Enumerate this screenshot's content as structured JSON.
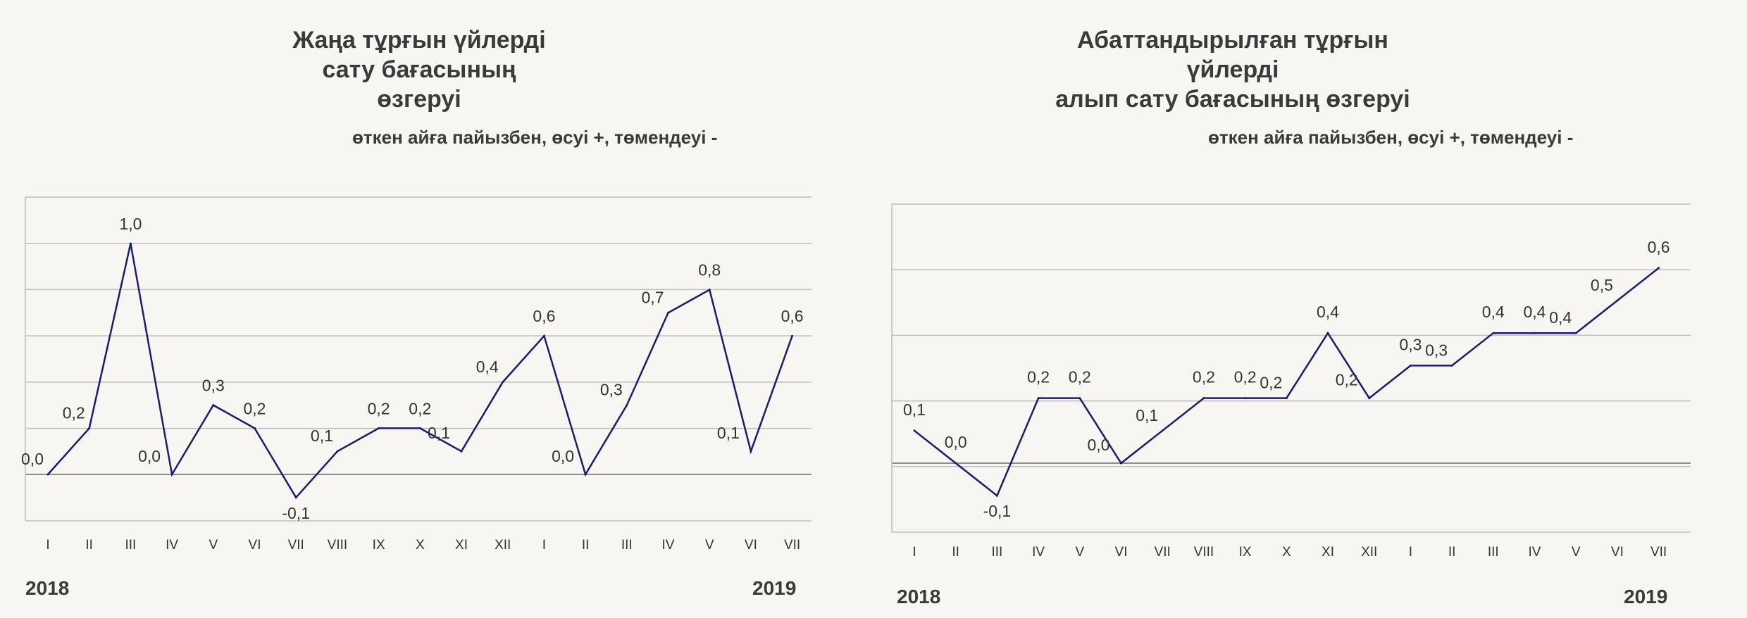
{
  "chart_data": [
    {
      "type": "line",
      "title": "Жаңа тұрғын үйлерді\nсату бағасының өзгеруі",
      "subtitle": "өткен айға пайызбен, өсуі +, төмендеуі -",
      "categories": [
        "I",
        "II",
        "III",
        "IV",
        "V",
        "VI",
        "VII",
        "VIII",
        "IX",
        "X",
        "XI",
        "XII",
        "I",
        "II",
        "III",
        "IV",
        "V",
        "VI",
        "VII"
      ],
      "values": [
        0.0,
        0.2,
        1.0,
        0.0,
        0.3,
        0.2,
        -0.1,
        0.1,
        0.2,
        0.2,
        0.1,
        0.4,
        0.6,
        0.0,
        0.3,
        0.7,
        0.8,
        0.1,
        0.6
      ],
      "value_labels": [
        "0,0",
        "0,2",
        "1,0",
        "0,0",
        "0,3",
        "0,2",
        "-0,1",
        "0,1",
        "0,2",
        "0,2",
        "0,1",
        "0,4",
        "0,6",
        "0,0",
        "0,3",
        "0,7",
        "0,8",
        "0,1",
        "0,6"
      ],
      "year_start": "2018",
      "year_end": "2019",
      "ylim": [
        -0.2,
        1.2
      ],
      "line_color": "#1d1b6e",
      "grid": true
    },
    {
      "type": "line",
      "title": "Абаттандырылған тұрғын үйлерді\nалып сату бағасының өзгеруі",
      "subtitle": "өткен айға пайызбен, өсуі +, төмендеуі -",
      "categories": [
        "I",
        "II",
        "III",
        "IV",
        "V",
        "VI",
        "VII",
        "VIII",
        "IX",
        "X",
        "XI",
        "XII",
        "I",
        "II",
        "III",
        "IV",
        "V",
        "VI",
        "VII"
      ],
      "values": [
        0.1,
        0.0,
        -0.1,
        0.2,
        0.2,
        0.0,
        0.1,
        0.2,
        0.2,
        0.2,
        0.4,
        0.2,
        0.3,
        0.3,
        0.4,
        0.4,
        0.4,
        0.5,
        0.6
      ],
      "value_labels": [
        "0,1",
        "0,0",
        "-0,1",
        "0,2",
        "0,2",
        "0,0",
        "0,1",
        "0,2",
        "0,2",
        "0,2",
        "0,4",
        "0,2",
        "0,3",
        "0,3",
        "0,4",
        "0,4",
        "0,4",
        "0,5",
        "0,6"
      ],
      "year_start": "2018",
      "year_end": "2019",
      "ylim": [
        -0.2,
        0.8
      ],
      "line_color": "#1d1b6e",
      "grid": true
    }
  ]
}
